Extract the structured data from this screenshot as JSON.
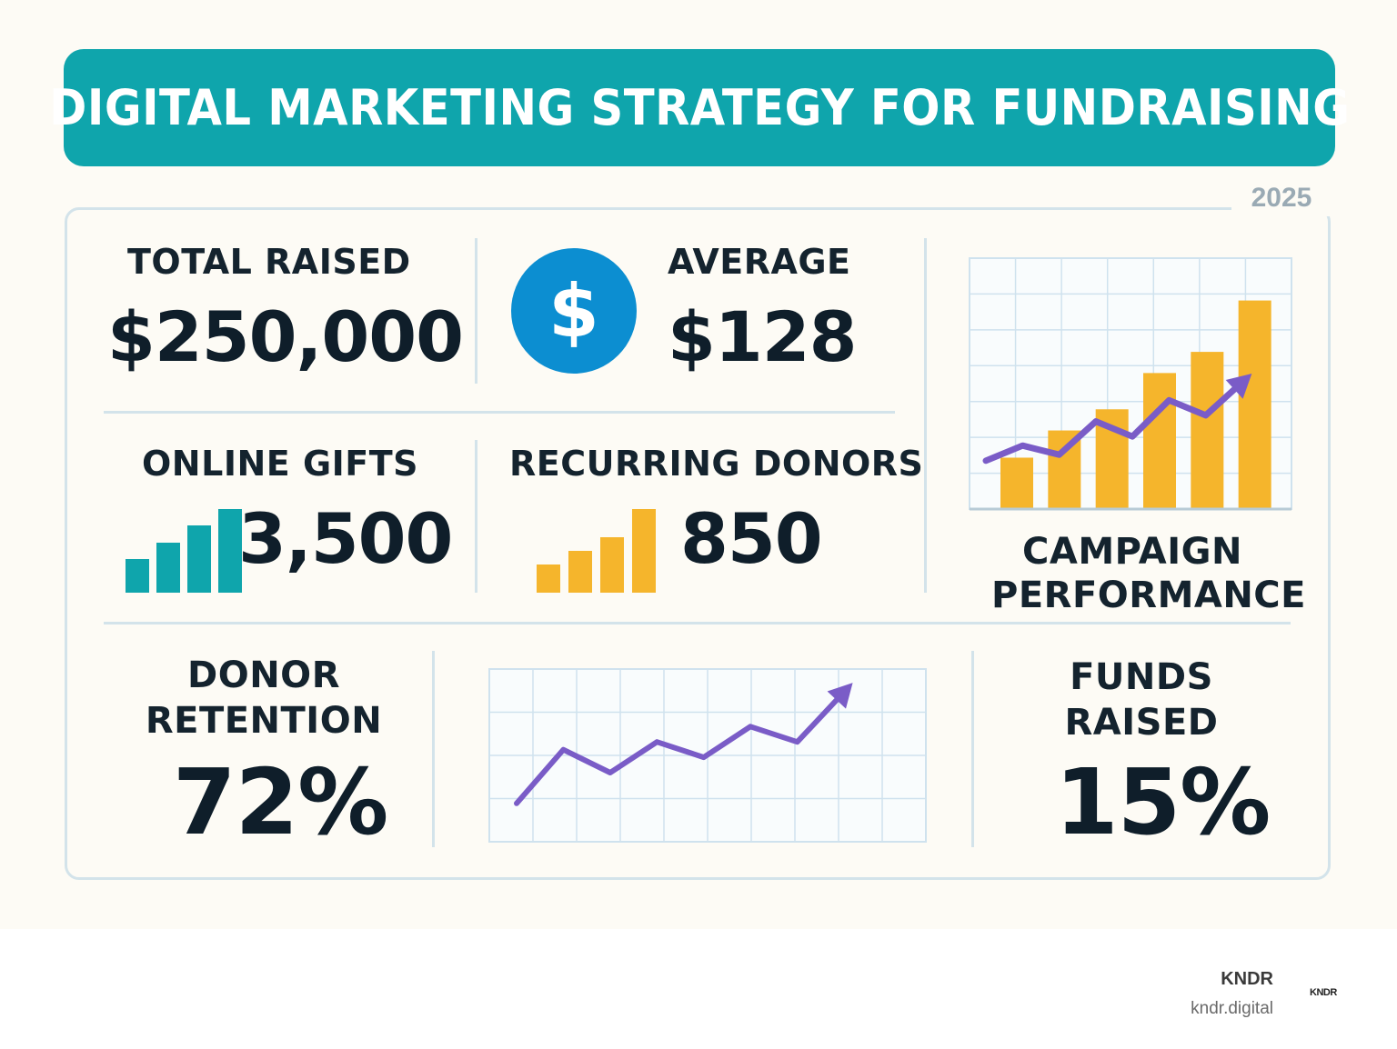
{
  "title": "DIGITAL MARKETING STRATEGY FOR FUNDRAISING",
  "year": "2025",
  "stats": {
    "total_raised": {
      "label": "TOTAL RAISED",
      "value": "$250,000"
    },
    "average": {
      "label": "AVERAGE",
      "value": "$128",
      "icon": "dollar-sign-icon"
    },
    "online_gifts": {
      "label": "ONLINE GIFTS",
      "value": "3,500",
      "icon": "bar-chart-icon"
    },
    "recurring_donors": {
      "label": "RECURRING DONORS",
      "value": "850",
      "icon": "bar-chart-icon"
    },
    "donor_retention": {
      "label_line1": "DONOR",
      "label_line2": "RETENTION",
      "value": "72%"
    },
    "funds_raised": {
      "label_line1": "FUNDS",
      "label_line2": "RAISED",
      "value": "15%"
    }
  },
  "campaign_performance": {
    "label_line1": "CAMPAIGN",
    "label_line2": "PERFORMANCE"
  },
  "dollar_symbol": "$",
  "colors": {
    "banner": "#0fa5ac",
    "teal": "#0fa5ac",
    "gold": "#f5b52c",
    "purple": "#7a5cc7",
    "circle_blue": "#0c8ed1",
    "grid": "#cfe2ee"
  },
  "chart_data": [
    {
      "type": "bar",
      "name": "online-gifts-icon-bars",
      "values": [
        2,
        3,
        4,
        5
      ],
      "ylim": [
        0,
        5
      ]
    },
    {
      "type": "bar",
      "name": "recurring-donors-icon-bars",
      "values": [
        2,
        3,
        4,
        6
      ],
      "ylim": [
        0,
        6
      ]
    },
    {
      "type": "bar+line",
      "name": "campaign-performance",
      "title": "CAMPAIGN PERFORMANCE",
      "bars": [
        1.7,
        2.6,
        3.3,
        4.5,
        5.2,
        6.9
      ],
      "line": [
        1.6,
        2.1,
        1.8,
        2.9,
        2.4,
        3.6,
        3.1,
        4.2
      ],
      "ylim": [
        0,
        8
      ],
      "grid": true
    },
    {
      "type": "line",
      "name": "donor-retention-trend",
      "values": [
        1.0,
        2.4,
        1.8,
        2.6,
        2.2,
        3.0,
        2.6,
        3.9
      ],
      "ylim": [
        0,
        4.5
      ],
      "grid": true
    }
  ],
  "footer": {
    "brand": "KNDR",
    "url": "kndr.digital",
    "logo_text": "KNDR"
  }
}
